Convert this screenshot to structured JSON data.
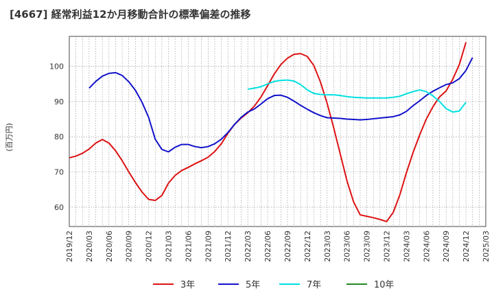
{
  "chart_data": {
    "type": "line",
    "title": "[4667]  経常利益12か月移動合計の標準偏差の推移",
    "ylabel": "(百万円)",
    "xlabel": "",
    "ylim": [
      54.5,
      108.5
    ],
    "y_ticks": [
      60,
      70,
      80,
      90,
      100
    ],
    "x_ticks": [
      "2019/12",
      "2020/03",
      "2020/06",
      "2020/09",
      "2020/12",
      "2021/03",
      "2021/06",
      "2021/09",
      "2021/12",
      "2022/03",
      "2022/06",
      "2022/09",
      "2022/12",
      "2023/03",
      "2023/06",
      "2023/09",
      "2023/12",
      "2024/03",
      "2024/06",
      "2024/09",
      "2024/12",
      "2025/03"
    ],
    "grid": true,
    "legend_position": "bottom",
    "series": [
      {
        "name": "3年",
        "color": "#dd1111",
        "points": [
          [
            "2019/12",
            74.0
          ],
          [
            "2020/01",
            74.5
          ],
          [
            "2020/02",
            75.3
          ],
          [
            "2020/03",
            76.5
          ],
          [
            "2020/04",
            78.2
          ],
          [
            "2020/05",
            79.2
          ],
          [
            "2020/06",
            78.2
          ],
          [
            "2020/07",
            76.0
          ],
          [
            "2020/08",
            73.2
          ],
          [
            "2020/09",
            70.0
          ],
          [
            "2020/10",
            67.0
          ],
          [
            "2020/11",
            64.3
          ],
          [
            "2020/12",
            62.2
          ],
          [
            "2021/01",
            61.9
          ],
          [
            "2021/02",
            63.3
          ],
          [
            "2021/03",
            66.8
          ],
          [
            "2021/04",
            69.0
          ],
          [
            "2021/05",
            70.4
          ],
          [
            "2021/06",
            71.3
          ],
          [
            "2021/07",
            72.3
          ],
          [
            "2021/08",
            73.2
          ],
          [
            "2021/09",
            74.2
          ],
          [
            "2021/10",
            75.8
          ],
          [
            "2021/11",
            78.0
          ],
          [
            "2021/12",
            81.0
          ],
          [
            "2022/01",
            83.5
          ],
          [
            "2022/02",
            85.3
          ],
          [
            "2022/03",
            86.8
          ],
          [
            "2022/04",
            88.7
          ],
          [
            "2022/05",
            91.3
          ],
          [
            "2022/06",
            94.5
          ],
          [
            "2022/07",
            97.8
          ],
          [
            "2022/08",
            100.5
          ],
          [
            "2022/09",
            102.3
          ],
          [
            "2022/10",
            103.4
          ],
          [
            "2022/11",
            103.6
          ],
          [
            "2022/12",
            102.8
          ],
          [
            "2023/01",
            100.2
          ],
          [
            "2023/02",
            95.5
          ],
          [
            "2023/03",
            89.5
          ],
          [
            "2023/04",
            82.5
          ],
          [
            "2023/05",
            75.0
          ],
          [
            "2023/06",
            67.5
          ],
          [
            "2023/07",
            61.5
          ],
          [
            "2023/08",
            57.8
          ],
          [
            "2023/09",
            57.4
          ],
          [
            "2023/10",
            57.0
          ],
          [
            "2023/11",
            56.5
          ],
          [
            "2023/12",
            55.9
          ],
          [
            "2024/01",
            58.5
          ],
          [
            "2024/02",
            63.5
          ],
          [
            "2024/03",
            69.8
          ],
          [
            "2024/04",
            75.5
          ],
          [
            "2024/05",
            80.5
          ],
          [
            "2024/06",
            85.0
          ],
          [
            "2024/07",
            88.5
          ],
          [
            "2024/08",
            91.3
          ],
          [
            "2024/09",
            93.0
          ],
          [
            "2024/10",
            96.3
          ],
          [
            "2024/11",
            100.5
          ],
          [
            "2024/12",
            106.8
          ]
        ]
      },
      {
        "name": "5年",
        "color": "#1111cc",
        "points": [
          [
            "2020/03",
            93.8
          ],
          [
            "2020/04",
            95.7
          ],
          [
            "2020/05",
            97.2
          ],
          [
            "2020/06",
            98.0
          ],
          [
            "2020/07",
            98.2
          ],
          [
            "2020/08",
            97.4
          ],
          [
            "2020/09",
            95.6
          ],
          [
            "2020/10",
            93.2
          ],
          [
            "2020/11",
            89.8
          ],
          [
            "2020/12",
            85.5
          ],
          [
            "2021/01",
            79.3
          ],
          [
            "2021/02",
            76.4
          ],
          [
            "2021/03",
            75.7
          ],
          [
            "2021/04",
            77.0
          ],
          [
            "2021/05",
            77.8
          ],
          [
            "2021/06",
            77.8
          ],
          [
            "2021/07",
            77.2
          ],
          [
            "2021/08",
            76.9
          ],
          [
            "2021/09",
            77.2
          ],
          [
            "2021/10",
            78.0
          ],
          [
            "2021/11",
            79.3
          ],
          [
            "2021/12",
            81.2
          ],
          [
            "2022/01",
            83.5
          ],
          [
            "2022/02",
            85.5
          ],
          [
            "2022/03",
            87.0
          ],
          [
            "2022/04",
            87.9
          ],
          [
            "2022/05",
            89.3
          ],
          [
            "2022/06",
            90.8
          ],
          [
            "2022/07",
            91.7
          ],
          [
            "2022/08",
            91.8
          ],
          [
            "2022/09",
            91.2
          ],
          [
            "2022/10",
            90.1
          ],
          [
            "2022/11",
            88.9
          ],
          [
            "2022/12",
            87.8
          ],
          [
            "2023/01",
            86.8
          ],
          [
            "2023/02",
            86.0
          ],
          [
            "2023/03",
            85.4
          ],
          [
            "2023/04",
            85.3
          ],
          [
            "2023/05",
            85.2
          ],
          [
            "2023/06",
            85.0
          ],
          [
            "2023/07",
            84.9
          ],
          [
            "2023/08",
            84.8
          ],
          [
            "2023/09",
            84.9
          ],
          [
            "2023/10",
            85.1
          ],
          [
            "2023/11",
            85.3
          ],
          [
            "2023/12",
            85.5
          ],
          [
            "2024/01",
            85.7
          ],
          [
            "2024/02",
            86.2
          ],
          [
            "2024/03",
            87.2
          ],
          [
            "2024/04",
            88.8
          ],
          [
            "2024/05",
            90.2
          ],
          [
            "2024/06",
            91.7
          ],
          [
            "2024/07",
            92.9
          ],
          [
            "2024/08",
            93.9
          ],
          [
            "2024/09",
            94.8
          ],
          [
            "2024/10",
            95.3
          ],
          [
            "2024/11",
            96.5
          ],
          [
            "2024/12",
            98.8
          ],
          [
            "2025/01",
            102.5
          ]
        ]
      },
      {
        "name": "7年",
        "color": "#00e0e0",
        "points": [
          [
            "2022/03",
            93.5
          ],
          [
            "2022/04",
            93.8
          ],
          [
            "2022/05",
            94.2
          ],
          [
            "2022/06",
            95.0
          ],
          [
            "2022/07",
            95.7
          ],
          [
            "2022/08",
            96.0
          ],
          [
            "2022/09",
            96.1
          ],
          [
            "2022/10",
            95.8
          ],
          [
            "2022/11",
            94.8
          ],
          [
            "2022/12",
            93.3
          ],
          [
            "2023/01",
            92.3
          ],
          [
            "2023/02",
            92.0
          ],
          [
            "2023/03",
            91.9
          ],
          [
            "2023/04",
            91.9
          ],
          [
            "2023/05",
            91.7
          ],
          [
            "2023/06",
            91.4
          ],
          [
            "2023/07",
            91.2
          ],
          [
            "2023/08",
            91.1
          ],
          [
            "2023/09",
            91.0
          ],
          [
            "2023/10",
            91.0
          ],
          [
            "2023/11",
            91.0
          ],
          [
            "2023/12",
            91.0
          ],
          [
            "2024/01",
            91.2
          ],
          [
            "2024/02",
            91.5
          ],
          [
            "2024/03",
            92.2
          ],
          [
            "2024/04",
            92.8
          ],
          [
            "2024/05",
            93.3
          ],
          [
            "2024/06",
            92.8
          ],
          [
            "2024/07",
            91.6
          ],
          [
            "2024/08",
            90.0
          ],
          [
            "2024/09",
            88.0
          ],
          [
            "2024/10",
            87.0
          ],
          [
            "2024/11",
            87.3
          ],
          [
            "2024/12",
            89.8
          ]
        ]
      },
      {
        "name": "10年",
        "color": "#228822",
        "points": []
      }
    ]
  }
}
